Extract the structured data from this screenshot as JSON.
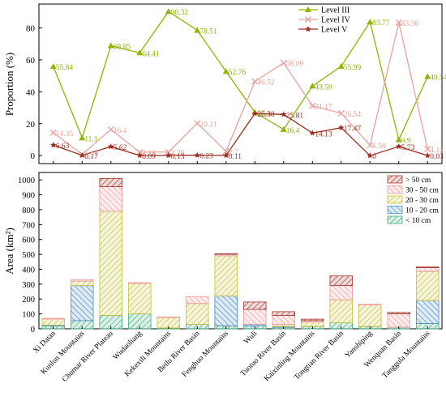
{
  "chart_data": [
    {
      "type": "line",
      "ylabel": "Proportion (%)",
      "ylim": [
        -5,
        95
      ],
      "yticks": [
        0,
        20,
        40,
        60,
        80
      ],
      "legend_position": "top-right",
      "series": [
        {
          "name": "Level III",
          "color": "#8db600",
          "marker": "triangle",
          "values": [
            55.84,
            11.1,
            68.85,
            64.41,
            90.32,
            78.51,
            52.76,
            27.1,
            16.4,
            43.59,
            55.99,
            83.77,
            9.9,
            49.54
          ],
          "labels": [
            "55.84",
            "11.1",
            "68.85",
            "64.41",
            "90.32",
            "78.51",
            "52.76",
            "27.1",
            "16.4",
            "43.59",
            "55.99",
            "83.77",
            "9.9",
            "49.54"
          ]
        },
        {
          "name": "Level IV",
          "color": "#e8a39c",
          "marker": "x",
          "values": [
            14.35,
            0.77,
            16.4,
            2.13,
            2.26,
            20.21,
            2.7,
            46.52,
            58.09,
            31.17,
            26.54,
            6.58,
            83.36,
            4.12
          ],
          "labels": [
            "14.35",
            "0.77",
            "16.4",
            "2.13",
            "2.26",
            "20.21",
            "2.7",
            "46.52",
            "58.09",
            "31.17",
            "26.54",
            "6.58",
            "83.36",
            "4.12"
          ]
        },
        {
          "name": "Level V",
          "color": "#9b2d20",
          "marker": "star",
          "values": [
            6.63,
            0.17,
            5.62,
            0.09,
            0.13,
            0.23,
            0.11,
            26.38,
            25.81,
            14.13,
            17.47,
            0,
            5.73,
            0.03
          ],
          "labels": [
            "6.63",
            "0.17",
            "5.62",
            "0.09",
            "0.13",
            "0.23",
            "0.11",
            "26.38",
            "25.81",
            "14.13",
            "17.47",
            "0",
            "5.73",
            "0.03"
          ]
        }
      ]
    },
    {
      "type": "bar",
      "stacked": true,
      "ylabel": "Area (km²)",
      "ylim": [
        0,
        1050
      ],
      "yticks": [
        0,
        100,
        200,
        300,
        400,
        500,
        600,
        700,
        800,
        900,
        1000
      ],
      "legend_position": "top-right",
      "categories": [
        "Xi Datan",
        "Kunlun Mountains",
        "Chumar River Plateau",
        "Wudaoliang",
        "Kekexili Mountains",
        "Beilu River Basin",
        "Fenghuo Mountains",
        "Wuli",
        "Tuotuo River Basin",
        "Kaixinling Mountains",
        "Tongtian River Basin",
        "Yanshiping",
        "Wenquan Basin",
        "Tanggula Mountains"
      ],
      "series": [
        {
          "name": "< 10 cm",
          "color": "#3fae7a",
          "values": [
            20,
            55,
            90,
            100,
            5,
            30,
            20,
            20,
            10,
            15,
            40,
            15,
            10,
            35
          ]
        },
        {
          "name": "10 - 20 cm",
          "color": "#4a8cc4",
          "values": [
            5,
            235,
            0,
            0,
            0,
            0,
            200,
            10,
            5,
            0,
            0,
            0,
            0,
            155
          ]
        },
        {
          "name": "20 - 30 cm",
          "color": "#c8c23c",
          "values": [
            40,
            30,
            700,
            205,
            70,
            140,
            270,
            0,
            15,
            30,
            155,
            145,
            0,
            195
          ]
        },
        {
          "name": "30 - 50 cm",
          "color": "#f29b9b",
          "values": [
            5,
            10,
            165,
            5,
            5,
            45,
            10,
            100,
            60,
            10,
            95,
            5,
            90,
            25
          ]
        },
        {
          "name": "> 50 cm",
          "color": "#a33a2c",
          "values": [
            0,
            0,
            55,
            0,
            0,
            0,
            5,
            50,
            25,
            10,
            65,
            0,
            10,
            5
          ]
        }
      ]
    }
  ]
}
